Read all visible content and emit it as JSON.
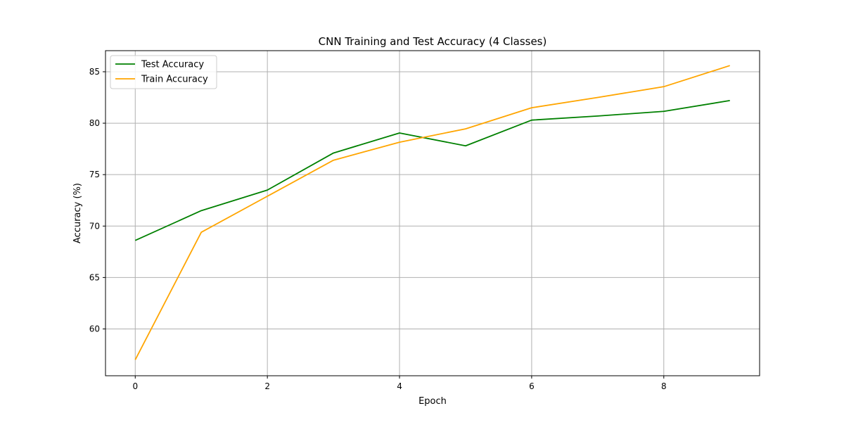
{
  "chart_data": {
    "type": "line",
    "title": "CNN Training and Test Accuracy (4 Classes)",
    "xlabel": "Epoch",
    "ylabel": "Accuracy (%)",
    "xlim": [
      -0.45,
      9.45
    ],
    "ylim": [
      55.45,
      87.05
    ],
    "xticks": [
      0,
      2,
      4,
      6,
      8
    ],
    "yticks": [
      60,
      65,
      70,
      75,
      80,
      85
    ],
    "grid": true,
    "legend_position": "top-left",
    "x": [
      0,
      1,
      2,
      3,
      4,
      5,
      6,
      7,
      8,
      9
    ],
    "series": [
      {
        "name": "Test Accuracy",
        "color": "#008000",
        "values": [
          68.6,
          71.5,
          73.5,
          77.1,
          79.05,
          77.8,
          80.3,
          80.7,
          81.15,
          82.2
        ]
      },
      {
        "name": "Train Accuracy",
        "color": "#ffa500",
        "values": [
          57.0,
          69.4,
          72.9,
          76.4,
          78.15,
          79.45,
          81.5,
          82.5,
          83.55,
          85.6
        ]
      }
    ]
  }
}
